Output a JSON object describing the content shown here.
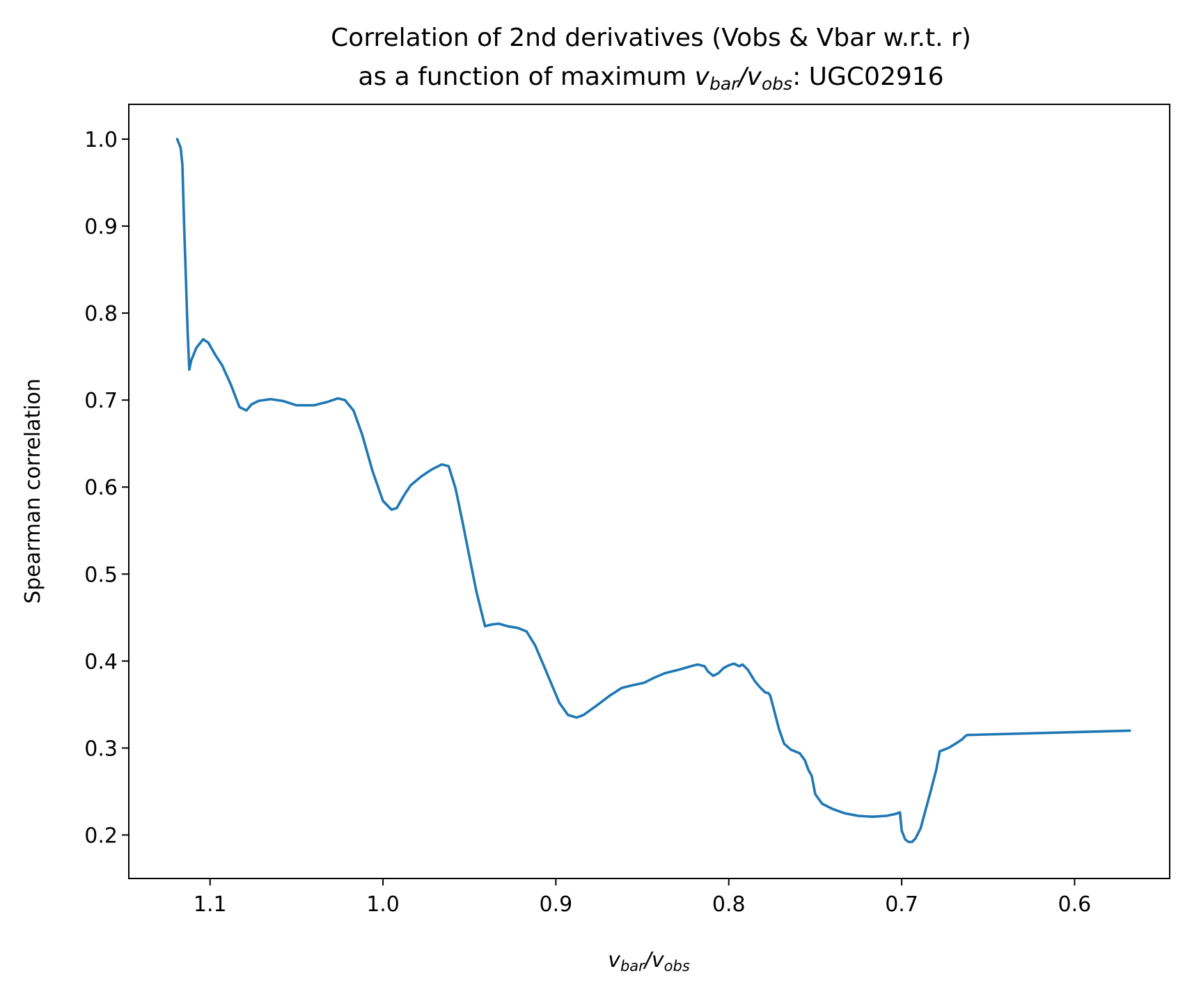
{
  "chart_data": {
    "type": "line",
    "title_line1": "Correlation of 2nd derivatives (Vobs & Vbar w.r.t. r)",
    "title_line2_prefix": "as a function of maximum ",
    "title_line2_suffix": ": UGC02916",
    "xlabel": {
      "v1": "v",
      "sub1": "bar",
      "slash": "/",
      "v2": "v",
      "sub2": "obs"
    },
    "ylabel": "Spearman correlation",
    "x_inverted": true,
    "xlim": [
      1.147,
      0.545
    ],
    "ylim": [
      0.15,
      1.04
    ],
    "xticks": [
      1.1,
      1.0,
      0.9,
      0.8,
      0.7,
      0.6
    ],
    "xtick_labels": [
      "1.1",
      "1.0",
      "0.9",
      "0.8",
      "0.7",
      "0.6"
    ],
    "yticks": [
      0.2,
      0.3,
      0.4,
      0.5,
      0.6,
      0.7,
      0.8,
      0.9,
      1.0
    ],
    "ytick_labels": [
      "0.2",
      "0.3",
      "0.4",
      "0.5",
      "0.6",
      "0.7",
      "0.8",
      "0.9",
      "1.0"
    ],
    "grid": false,
    "series": [
      {
        "color": "#1f77b4",
        "x": [
          1.119,
          1.117,
          1.116,
          1.115,
          1.114,
          1.113,
          1.112,
          1.111,
          1.108,
          1.104,
          1.101,
          1.097,
          1.093,
          1.088,
          1.083,
          1.079,
          1.076,
          1.072,
          1.065,
          1.058,
          1.05,
          1.04,
          1.032,
          1.026,
          1.022,
          1.017,
          1.012,
          1.006,
          1.0,
          0.995,
          0.992,
          0.988,
          0.984,
          0.978,
          0.972,
          0.966,
          0.962,
          0.958,
          0.954,
          0.95,
          0.946,
          0.941,
          0.937,
          0.933,
          0.928,
          0.922,
          0.917,
          0.912,
          0.906,
          0.898,
          0.893,
          0.888,
          0.884,
          0.877,
          0.869,
          0.862,
          0.856,
          0.849,
          0.843,
          0.837,
          0.829,
          0.822,
          0.818,
          0.814,
          0.812,
          0.809,
          0.806,
          0.803,
          0.8,
          0.797,
          0.794,
          0.792,
          0.789,
          0.785,
          0.782,
          0.779,
          0.777,
          0.776,
          0.774,
          0.771,
          0.768,
          0.764,
          0.759,
          0.756,
          0.754,
          0.752,
          0.75,
          0.746,
          0.74,
          0.733,
          0.725,
          0.717,
          0.709,
          0.704,
          0.701,
          0.7,
          0.698,
          0.696,
          0.694,
          0.692,
          0.689,
          0.686,
          0.683,
          0.68,
          0.678,
          0.677,
          0.673,
          0.668,
          0.665,
          0.663,
          0.662,
          0.568
        ],
        "y": [
          1.0,
          0.99,
          0.97,
          0.9,
          0.84,
          0.78,
          0.735,
          0.745,
          0.76,
          0.77,
          0.766,
          0.752,
          0.74,
          0.718,
          0.692,
          0.688,
          0.695,
          0.699,
          0.701,
          0.699,
          0.694,
          0.694,
          0.698,
          0.702,
          0.7,
          0.688,
          0.66,
          0.618,
          0.584,
          0.574,
          0.576,
          0.59,
          0.602,
          0.612,
          0.62,
          0.626,
          0.624,
          0.598,
          0.56,
          0.52,
          0.48,
          0.44,
          0.442,
          0.443,
          0.44,
          0.438,
          0.434,
          0.418,
          0.39,
          0.352,
          0.338,
          0.335,
          0.338,
          0.348,
          0.36,
          0.369,
          0.372,
          0.375,
          0.381,
          0.386,
          0.39,
          0.394,
          0.396,
          0.394,
          0.388,
          0.383,
          0.386,
          0.392,
          0.395,
          0.397,
          0.394,
          0.396,
          0.39,
          0.377,
          0.37,
          0.364,
          0.363,
          0.36,
          0.345,
          0.322,
          0.305,
          0.298,
          0.294,
          0.286,
          0.275,
          0.268,
          0.247,
          0.236,
          0.23,
          0.225,
          0.222,
          0.221,
          0.222,
          0.224,
          0.226,
          0.205,
          0.195,
          0.192,
          0.192,
          0.196,
          0.208,
          0.23,
          0.252,
          0.275,
          0.296,
          0.297,
          0.3,
          0.306,
          0.31,
          0.314,
          0.315,
          0.32
        ]
      }
    ]
  }
}
